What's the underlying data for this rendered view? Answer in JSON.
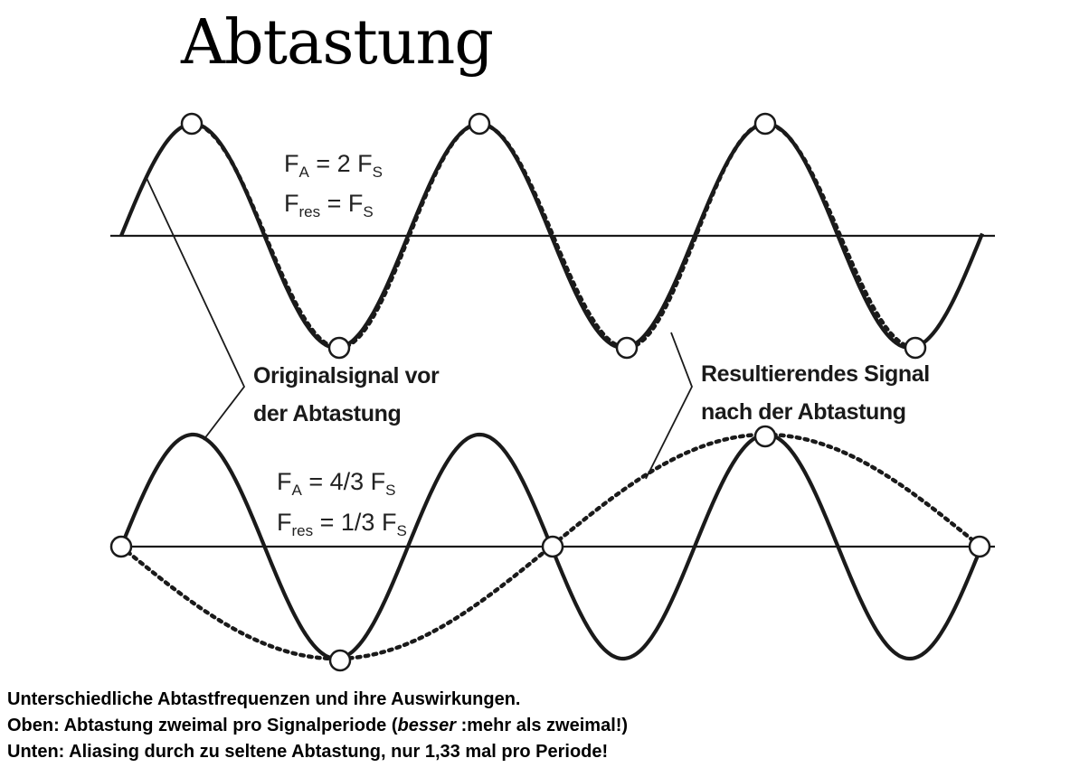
{
  "title": "Abtastung",
  "top": {
    "eq1": {
      "sym": "F",
      "sub": "A",
      "rhs": "= 2 F",
      "rhs_sub": "S"
    },
    "eq2": {
      "sym": "F",
      "sub": "res",
      "rhs": "= F",
      "rhs_sub": "S"
    },
    "signal_cycles": 3,
    "sample_rate_ratio": 2
  },
  "bottom": {
    "eq1": {
      "sym": "F",
      "sub": "A",
      "rhs": "= 4/3 F",
      "rhs_sub": "S"
    },
    "eq2": {
      "sym": "F",
      "sub": "res",
      "rhs": "= 1/3 F",
      "rhs_sub": "S"
    },
    "signal_cycles": 3,
    "sample_rate_ratio": 1.3333
  },
  "labels": {
    "original_line1": "Originalsignal vor",
    "original_line2": "der Abtastung",
    "resulting_line1": "Resultierendes Signal",
    "resulting_line2": "nach der Abtastung"
  },
  "caption": {
    "line1": "Unterschiedliche Abtastfrequenzen und ihre Auswirkungen.",
    "line2_pre": "Oben: Abtastung zweimal pro Signalperiode (",
    "line2_em": "besser",
    "line2_post": " :mehr als zweimal!)",
    "line3": "Unten: Aliasing durch zu seltene Abtastung, nur 1,33 mal pro Periode!"
  },
  "colors": {
    "ink": "#1a1a1a",
    "background": "#ffffff"
  }
}
